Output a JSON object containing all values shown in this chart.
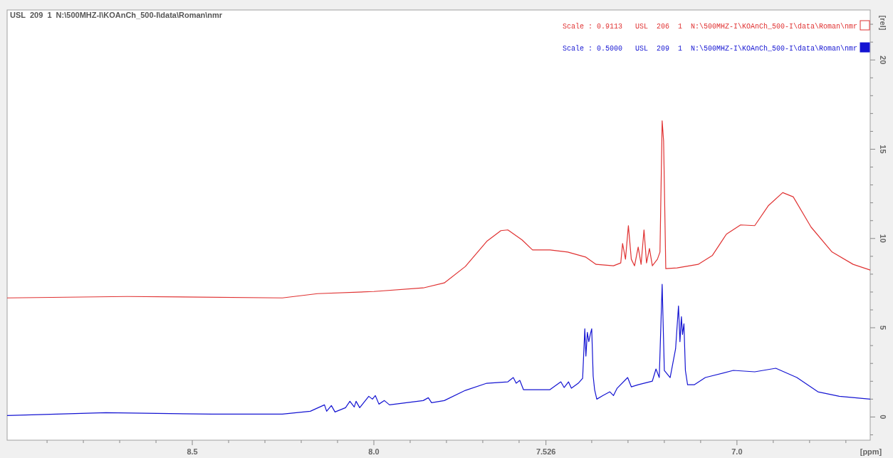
{
  "chart_data": {
    "type": "line",
    "title": "USL  209  1  N:\\500MHZ-I\\KOAnCh_500-I\\data\\Roman\\nmr",
    "xlabel": "[ppm]",
    "ylabel": "[rel]",
    "xlim": [
      9.01,
      6.633
    ],
    "ylim": [
      -1.3,
      22.8
    ],
    "xticks": [
      {
        "value": 8.9,
        "label": null
      },
      {
        "value": 8.8,
        "label": null
      },
      {
        "value": 8.7,
        "label": null
      },
      {
        "value": 8.6,
        "label": null
      },
      8.5,
      {
        "value": 8.4,
        "label": null
      },
      {
        "value": 8.3,
        "label": null
      },
      {
        "value": 8.2,
        "label": null
      },
      {
        "value": 8.1,
        "label": null
      },
      {
        "value": 8.0,
        "label": "8.0"
      },
      {
        "value": 7.9,
        "label": null
      },
      {
        "value": 7.8,
        "label": null
      },
      {
        "value": 7.7,
        "label": null
      },
      {
        "value": 7.6,
        "label": null
      },
      {
        "value": 7.526,
        "label": "7.526"
      },
      {
        "value": 7.4,
        "label": null
      },
      {
        "value": 7.3,
        "label": null
      },
      {
        "value": 7.2,
        "label": null
      },
      {
        "value": 7.1,
        "label": null
      },
      {
        "value": 7.0,
        "label": "7.0"
      },
      {
        "value": 6.9,
        "label": null
      },
      {
        "value": 6.8,
        "label": null
      },
      {
        "value": 6.7,
        "label": null
      }
    ],
    "yticks": [
      {
        "value": -1,
        "label": null
      },
      0,
      {
        "value": 1,
        "label": null
      },
      {
        "value": 2,
        "label": null
      },
      {
        "value": 3,
        "label": null
      },
      {
        "value": 4,
        "label": null
      },
      5,
      {
        "value": 6,
        "label": null
      },
      {
        "value": 7,
        "label": null
      },
      {
        "value": 8,
        "label": null
      },
      {
        "value": 9,
        "label": null
      },
      10,
      {
        "value": 11,
        "label": null
      },
      {
        "value": 12,
        "label": null
      },
      {
        "value": 13,
        "label": null
      },
      {
        "value": 14,
        "label": null
      },
      15,
      {
        "value": 16,
        "label": null
      },
      {
        "value": 17,
        "label": null
      },
      {
        "value": 18,
        "label": null
      },
      {
        "value": 19,
        "label": null
      },
      20,
      {
        "value": 21,
        "label": null
      },
      {
        "value": 22,
        "label": null
      }
    ],
    "grid": false,
    "legend": "top right",
    "line_style": "solid",
    "series": [
      {
        "name": "Scale : 0.9113   USL  206  1  N:\\500MHZ-I\\KOAnCh_500-I\\data\\Roman\\nmr",
        "color": "#e03232",
        "x": [
          9.01,
          8.68,
          8.252,
          8.155,
          8.0,
          7.864,
          7.806,
          7.748,
          7.689,
          7.65,
          7.631,
          7.592,
          7.563,
          7.515,
          7.466,
          7.417,
          7.388,
          7.34,
          7.32,
          7.315,
          7.307,
          7.299,
          7.291,
          7.282,
          7.272,
          7.264,
          7.256,
          7.249,
          7.241,
          7.233,
          7.219,
          7.212,
          7.206,
          7.202,
          7.196,
          7.165,
          7.107,
          7.068,
          7.029,
          6.99,
          6.951,
          6.913,
          6.874,
          6.845,
          6.796,
          6.738,
          6.68,
          6.633
        ],
        "values": [
          6.67,
          6.75,
          6.67,
          6.91,
          7.03,
          7.23,
          7.51,
          8.43,
          9.84,
          10.44,
          10.48,
          9.92,
          9.36,
          9.36,
          9.24,
          8.96,
          8.55,
          8.47,
          8.63,
          9.72,
          8.84,
          10.72,
          8.84,
          8.47,
          9.52,
          8.55,
          10.48,
          8.63,
          9.44,
          8.47,
          8.84,
          9.24,
          16.59,
          15.46,
          8.31,
          8.35,
          8.55,
          9.04,
          10.24,
          10.76,
          10.72,
          11.85,
          12.57,
          12.33,
          10.64,
          9.24,
          8.55,
          8.23
        ]
      },
      {
        "name": "Scale : 0.5000   USL  209  1  N:\\500MHZ-I\\KOAnCh_500-I\\data\\Roman\\nmr",
        "color": "#1414d2",
        "x": [
          9.01,
          8.738,
          8.447,
          8.252,
          8.175,
          8.136,
          8.13,
          8.117,
          8.107,
          8.078,
          8.066,
          8.054,
          8.049,
          8.039,
          8.014,
          8.004,
          7.996,
          7.986,
          7.971,
          7.957,
          7.864,
          7.85,
          7.841,
          7.806,
          7.748,
          7.689,
          7.631,
          7.616,
          7.608,
          7.598,
          7.588,
          7.515,
          7.485,
          7.476,
          7.464,
          7.456,
          7.437,
          7.425,
          7.419,
          7.416,
          7.412,
          7.408,
          7.404,
          7.4,
          7.396,
          7.392,
          7.386,
          7.369,
          7.35,
          7.34,
          7.33,
          7.301,
          7.291,
          7.272,
          7.233,
          7.223,
          7.214,
          7.206,
          7.2,
          7.184,
          7.169,
          7.161,
          7.157,
          7.153,
          7.15,
          7.146,
          7.142,
          7.136,
          7.117,
          7.087,
          7.01,
          6.951,
          6.893,
          6.835,
          6.777,
          6.718,
          6.633
        ],
        "values": [
          0.08,
          0.24,
          0.16,
          0.16,
          0.32,
          0.68,
          0.32,
          0.64,
          0.28,
          0.52,
          0.88,
          0.56,
          0.88,
          0.52,
          1.16,
          1.0,
          1.2,
          0.72,
          0.92,
          0.68,
          0.92,
          1.08,
          0.8,
          0.92,
          1.49,
          1.89,
          1.97,
          2.21,
          1.89,
          2.05,
          1.53,
          1.53,
          1.97,
          1.65,
          1.97,
          1.61,
          1.89,
          2.17,
          4.94,
          3.41,
          4.74,
          4.22,
          4.62,
          4.94,
          2.29,
          1.53,
          1.0,
          1.2,
          1.41,
          1.2,
          1.61,
          2.21,
          1.69,
          1.81,
          2.01,
          2.69,
          2.21,
          7.43,
          2.61,
          2.21,
          3.82,
          6.22,
          4.22,
          5.62,
          4.62,
          5.22,
          2.61,
          1.81,
          1.81,
          2.21,
          2.61,
          2.53,
          2.73,
          2.21,
          1.41,
          1.16,
          1.0
        ]
      }
    ]
  }
}
